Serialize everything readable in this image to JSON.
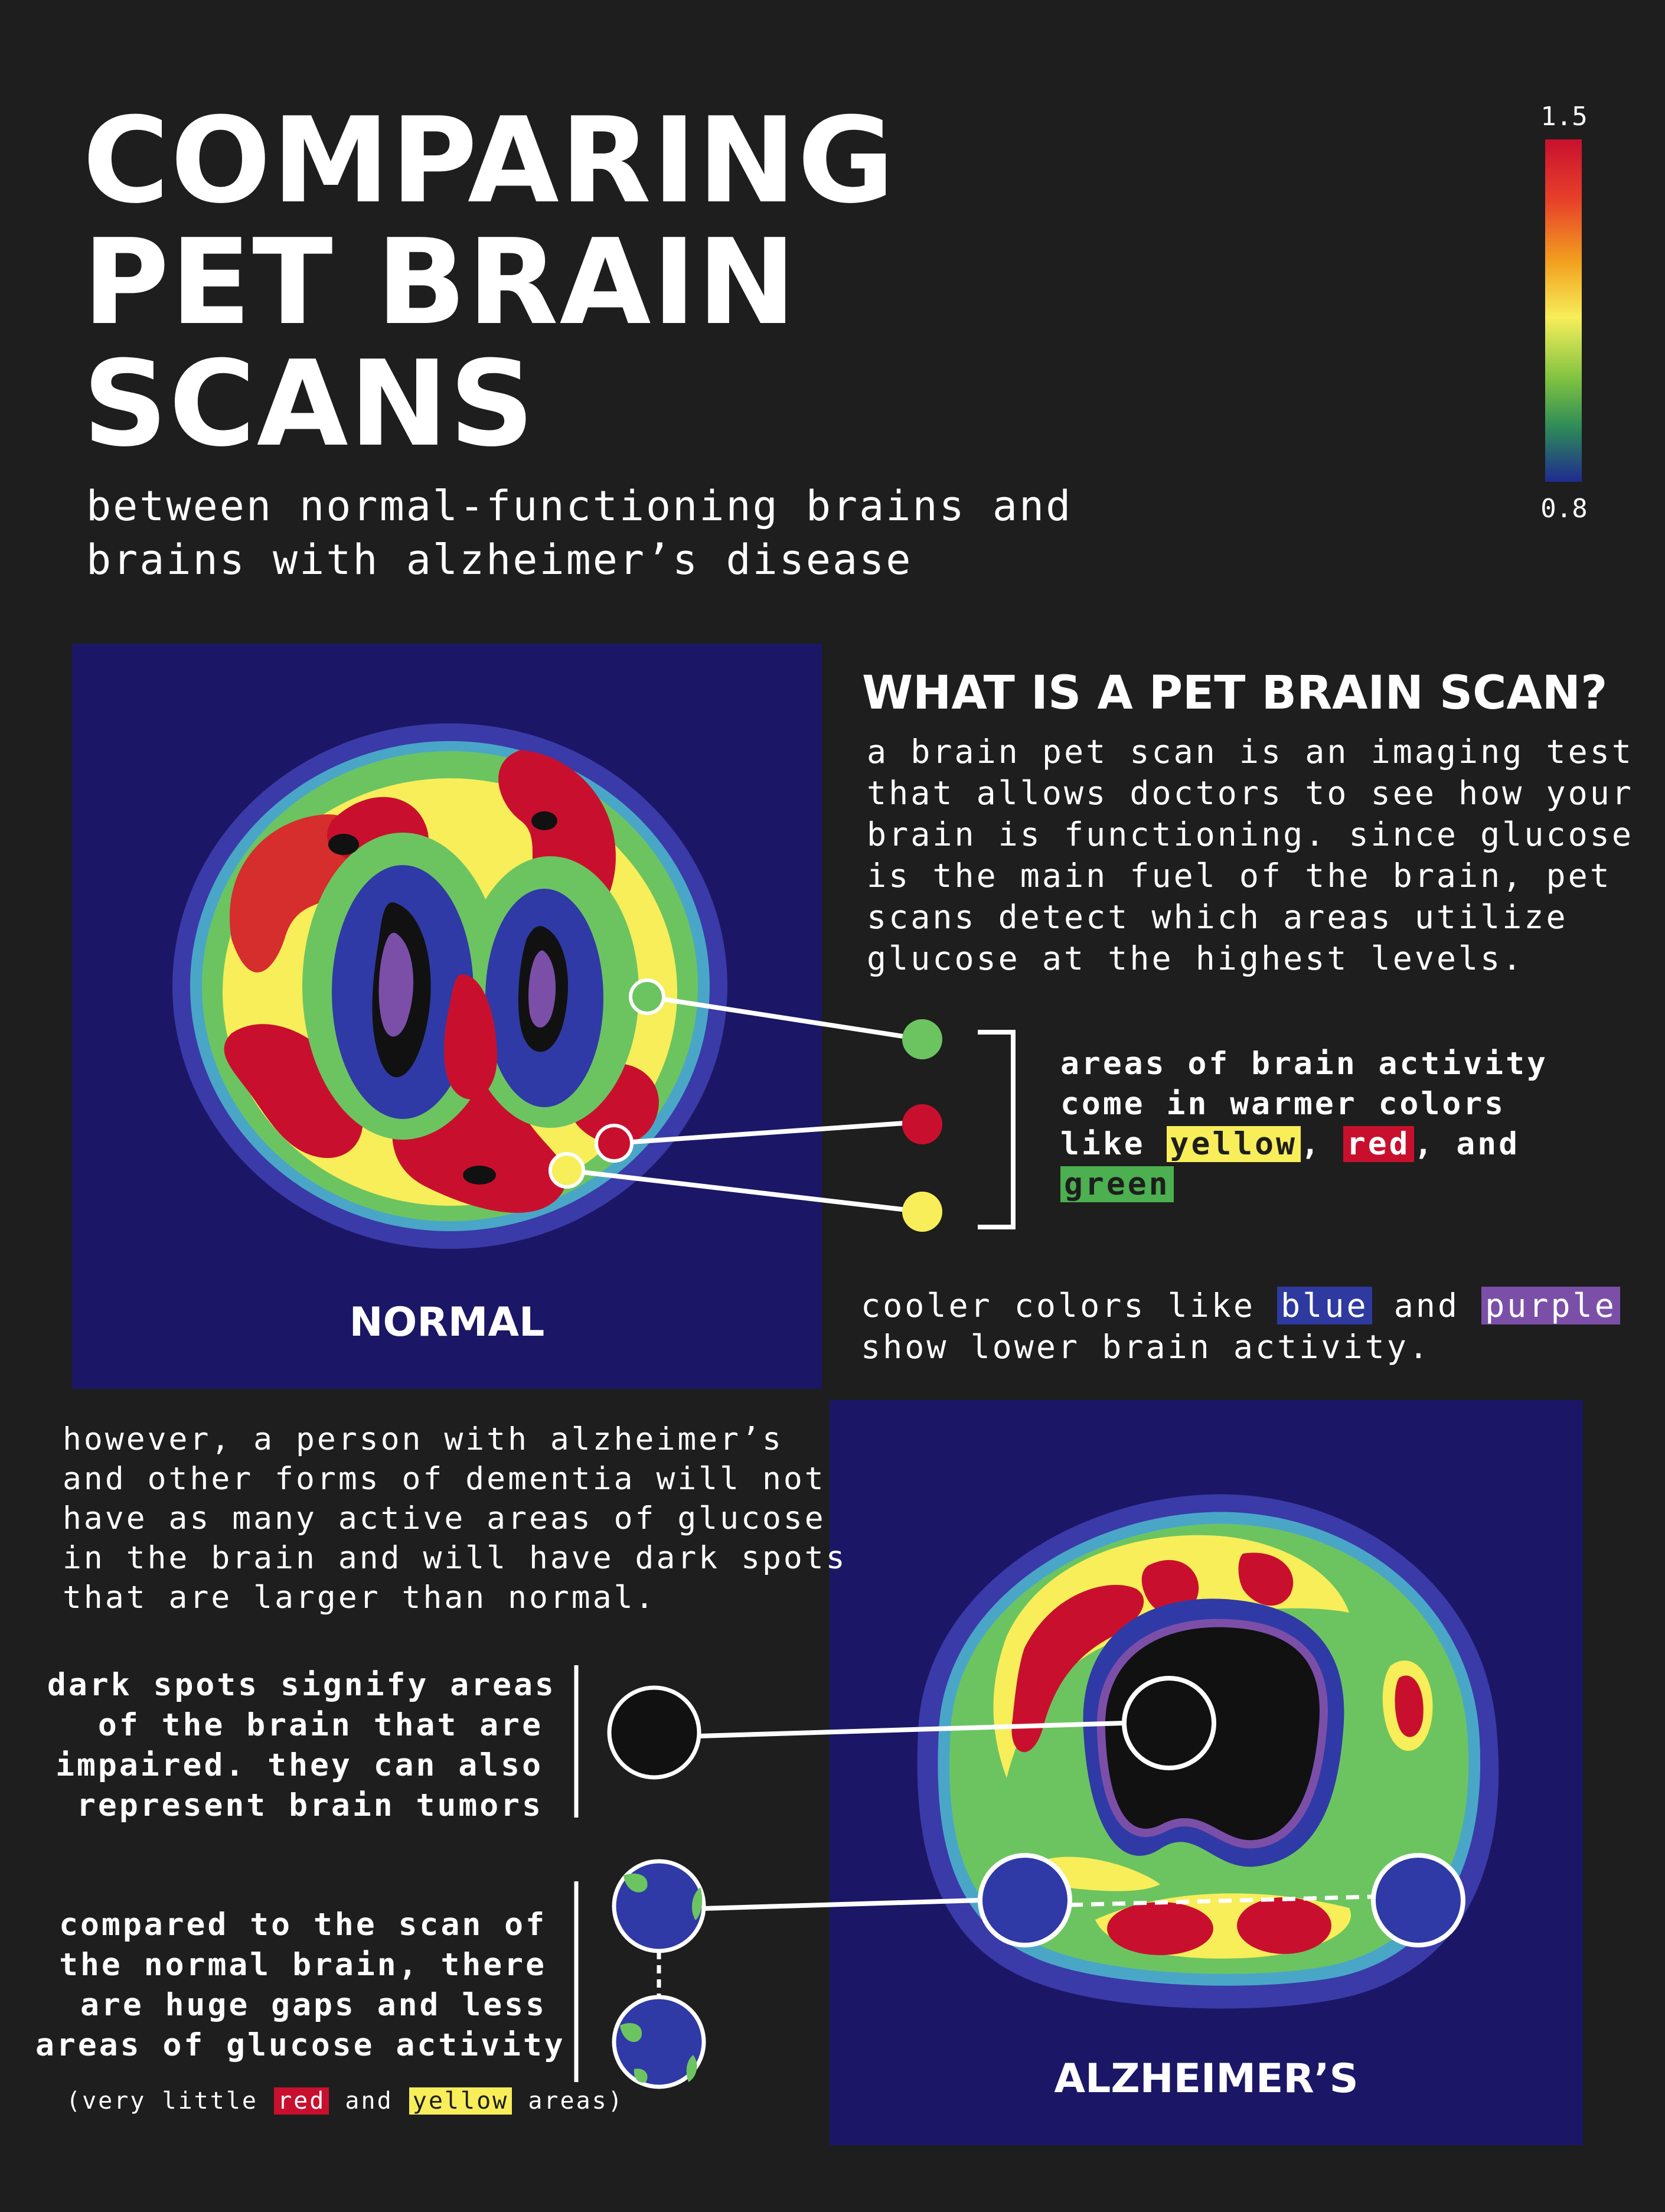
{
  "title": {
    "lines": [
      "COMPARING",
      "PET BRAIN",
      "SCANS"
    ]
  },
  "subtitle": {
    "lines": [
      "between normal-functioning brains and",
      "brains with alzheimer’s disease"
    ]
  },
  "legend": {
    "max_label": "1.5",
    "min_label": "0.8",
    "colors": [
      "#c8102e",
      "#f2a11f",
      "#f7ee5a",
      "#7fc241",
      "#1f2b8f"
    ]
  },
  "what_is": {
    "heading": "WHAT IS A PET BRAIN SCAN?",
    "lines": [
      "a brain pet scan is an imaging test",
      "that allows doctors to see how your",
      "brain is functioning. since glucose",
      "is the main fuel of the brain, pet",
      "scans detect which areas utilize",
      "glucose at the highest levels."
    ]
  },
  "warm": {
    "line1": "areas of brain activity",
    "line2": "come in warmer colors",
    "line3_prefix": "like ",
    "yellow": "yellow",
    "sep1": ", ",
    "red": "red",
    "sep2": ", and",
    "green": "green"
  },
  "cool": {
    "prefix": "cooler colors like ",
    "blue": "blue",
    "mid": " and ",
    "purple": "purple",
    "line2": "show lower brain activity."
  },
  "normal_label": "NORMAL",
  "alz_label": "ALZHEIMER’S",
  "however": {
    "lines": [
      "however, a person with alzheimer’s",
      "and other forms of dementia will not",
      "have as many active areas of glucose",
      "in the brain and will have dark spots",
      "that are larger than normal."
    ]
  },
  "dark_spots": {
    "lines": [
      "dark spots signify areas",
      "of the brain that are",
      "impaired. they can also",
      "represent brain tumors"
    ]
  },
  "compared": {
    "lines": [
      "compared to the scan of",
      "the normal brain, there",
      "are huge gaps and less",
      "areas of glucose activity"
    ]
  },
  "footnote": {
    "prefix": "(very little ",
    "red": "red",
    "mid": " and ",
    "yellow": "yellow",
    "suffix": " areas)"
  }
}
